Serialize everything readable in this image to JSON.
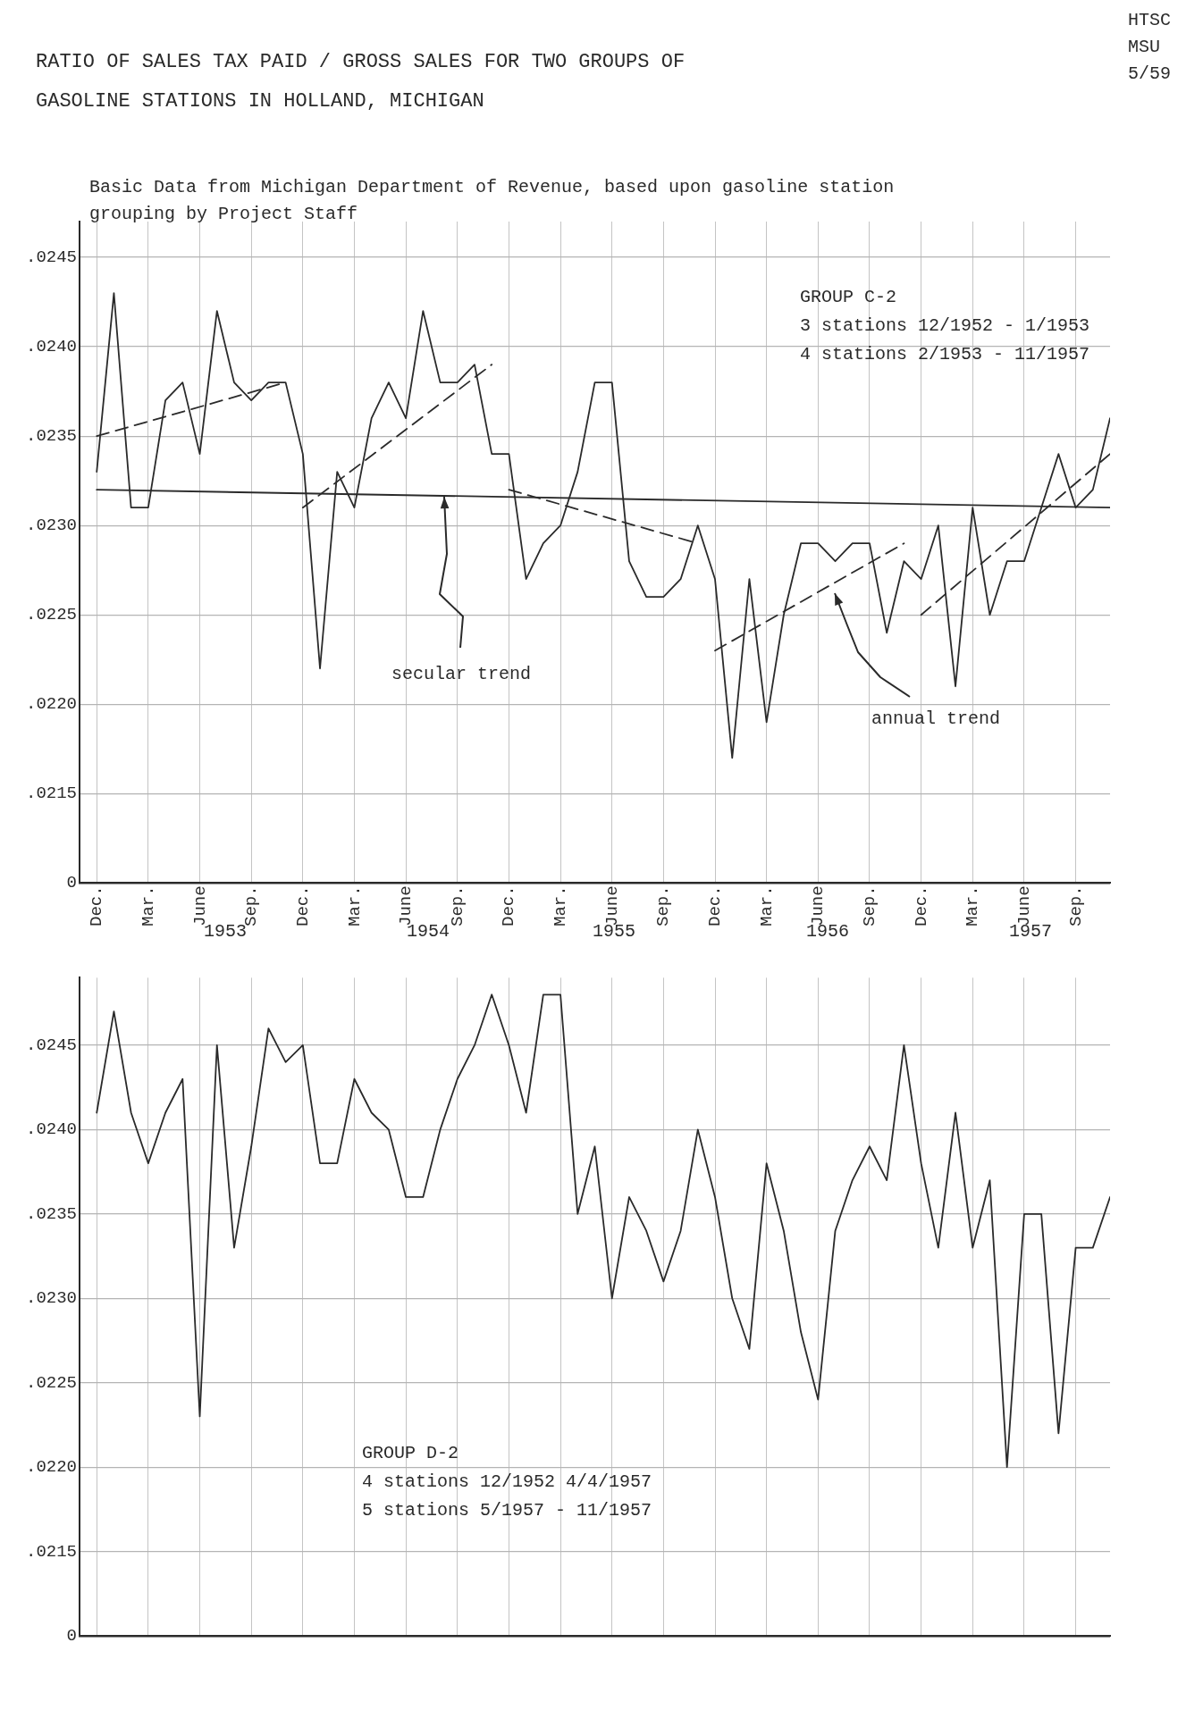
{
  "chart_data": [
    {
      "type": "line",
      "title": "RATIO OF SALES TAX PAID / GROSS SALES FOR TWO GROUPS OF GASOLINE STATIONS IN HOLLAND, MICHIGAN",
      "subtitle": "Basic Data from Michigan Department of Revenue, based upon gasoline station grouping by Project Staff",
      "annotations": [
        "HTSC MSU 5/59",
        "GROUP C-2",
        "3 stations 12/1952 - 1/1953",
        "4 stations 2/1953 - 11/1957",
        "1953",
        "1954",
        "1955",
        "1956",
        "1957"
      ],
      "x": [
        "1952-12",
        "1953-01",
        "1953-02",
        "1953-03",
        "1953-04",
        "1953-05",
        "1953-06",
        "1953-07",
        "1953-08",
        "1953-09",
        "1953-10",
        "1953-11",
        "1953-12",
        "1954-01",
        "1954-02",
        "1954-03",
        "1954-04",
        "1954-05",
        "1954-06",
        "1954-07",
        "1954-08",
        "1954-09",
        "1954-10",
        "1954-11",
        "1954-12",
        "1955-01",
        "1955-02",
        "1955-03",
        "1955-04",
        "1955-05",
        "1955-06",
        "1955-07",
        "1955-08",
        "1955-09",
        "1955-10",
        "1955-11",
        "1955-12",
        "1956-01",
        "1956-02",
        "1956-03",
        "1956-04",
        "1956-05",
        "1956-06",
        "1956-07",
        "1956-08",
        "1956-09",
        "1956-10",
        "1956-11",
        "1956-12",
        "1957-01",
        "1957-02",
        "1957-03",
        "1957-04",
        "1957-05",
        "1957-06",
        "1957-07",
        "1957-08",
        "1957-09",
        "1957-10",
        "1957-11"
      ],
      "xlim": [
        "1952-11",
        "1957-11"
      ],
      "xticks": [
        {
          "value": "1952-12",
          "label": "Dec."
        },
        {
          "value": "1953-03",
          "label": "Mar."
        },
        {
          "value": "1953-06",
          "label": "June"
        },
        {
          "value": "1953-09",
          "label": "Sep."
        },
        {
          "value": "1953-12",
          "label": "Dec."
        },
        {
          "value": "1954-03",
          "label": "Mar."
        },
        {
          "value": "1954-06",
          "label": "June"
        },
        {
          "value": "1954-09",
          "label": "Sep."
        },
        {
          "value": "1954-12",
          "label": "Dec."
        },
        {
          "value": "1955-03",
          "label": "Mar."
        },
        {
          "value": "1955-06",
          "label": "June"
        },
        {
          "value": "1955-09",
          "label": "Sep."
        },
        {
          "value": "1955-12",
          "label": "Dec."
        },
        {
          "value": "1956-03",
          "label": "Mar."
        },
        {
          "value": "1956-06",
          "label": "June"
        },
        {
          "value": "1956-09",
          "label": "Sep."
        },
        {
          "value": "1956-12",
          "label": "Dec."
        },
        {
          "value": "1957-03",
          "label": "Mar."
        },
        {
          "value": "1957-06",
          "label": "June"
        },
        {
          "value": "1957-09",
          "label": "Sep."
        }
      ],
      "ylim": [
        0.021,
        0.0247
      ],
      "yticks": [
        {
          "value": 0.021,
          "label": "0"
        },
        {
          "value": 0.0215,
          "label": ".0215"
        },
        {
          "value": 0.022,
          "label": ".0220"
        },
        {
          "value": 0.0225,
          "label": ".0225"
        },
        {
          "value": 0.023,
          "label": ".0230"
        },
        {
          "value": 0.0235,
          "label": ".0235"
        },
        {
          "value": 0.024,
          "label": ".0240"
        },
        {
          "value": 0.0245,
          "label": ".0245"
        }
      ],
      "grid": true,
      "marker": "none",
      "series": [
        {
          "color": "#2a2a2a",
          "line_style": "solid",
          "values": [
            0.0233,
            0.0243,
            0.0231,
            0.0231,
            0.0237,
            0.0238,
            0.0234,
            0.0242,
            0.0238,
            0.0237,
            0.0238,
            0.0238,
            0.0234,
            0.0222,
            0.0233,
            0.0231,
            0.0236,
            0.0238,
            0.0236,
            0.0242,
            0.0238,
            0.0238,
            0.0239,
            0.0234,
            0.0234,
            0.0227,
            0.0229,
            0.023,
            0.0233,
            0.0238,
            0.0238,
            0.0228,
            0.0226,
            0.0226,
            0.0227,
            0.023,
            0.0227,
            0.0217,
            0.0227,
            0.0219,
            0.0225,
            0.0229,
            0.0229,
            0.0228,
            0.0229,
            0.0229,
            0.0224,
            0.0228,
            0.0227,
            0.023,
            0.0221,
            0.0231,
            0.0225,
            0.0228,
            0.0228,
            0.0231,
            0.0234,
            0.0231,
            0.0232,
            0.0236
          ]
        },
        {
          "name": "secular trend",
          "type": "line",
          "color": "#2a2a2a",
          "line_style": "solid",
          "x": [
            "1952-12",
            "1957-11"
          ],
          "values": [
            0.0232,
            0.0231
          ]
        },
        {
          "name": "annual trend",
          "type": "line",
          "color": "#2a2a2a",
          "line_style": "dashed",
          "x": [
            "1952-12",
            "1953-11",
            null,
            "1953-12",
            "1954-11",
            null,
            "1954-12",
            "1955-11",
            null,
            "1955-12",
            "1956-11",
            null,
            "1956-12",
            "1957-11"
          ],
          "values": [
            0.0235,
            0.0238,
            null,
            0.0231,
            0.0239,
            null,
            0.0232,
            0.0229,
            null,
            0.0223,
            0.0229,
            null,
            0.0225,
            0.0234
          ]
        }
      ]
    },
    {
      "type": "line",
      "annotations": [
        "GROUP D-2",
        "4 stations 12/1952 4/4/1957",
        "5 stations 5/1957 - 11/1957"
      ],
      "x": [
        "1952-12",
        "1953-01",
        "1953-02",
        "1953-03",
        "1953-04",
        "1953-05",
        "1953-06",
        "1953-07",
        "1953-08",
        "1953-09",
        "1953-10",
        "1953-11",
        "1953-12",
        "1954-01",
        "1954-02",
        "1954-03",
        "1954-04",
        "1954-05",
        "1954-06",
        "1954-07",
        "1954-08",
        "1954-09",
        "1954-10",
        "1954-11",
        "1954-12",
        "1955-01",
        "1955-02",
        "1955-03",
        "1955-04",
        "1955-05",
        "1955-06",
        "1955-07",
        "1955-08",
        "1955-09",
        "1955-10",
        "1955-11",
        "1955-12",
        "1956-01",
        "1956-02",
        "1956-03",
        "1956-04",
        "1956-05",
        "1956-06",
        "1956-07",
        "1956-08",
        "1956-09",
        "1956-10",
        "1956-11",
        "1956-12",
        "1957-01",
        "1957-02",
        "1957-03",
        "1957-04",
        "1957-05",
        "1957-06",
        "1957-07",
        "1957-08",
        "1957-09",
        "1957-10",
        "1957-11"
      ],
      "xlim": [
        "1952-11",
        "1957-11"
      ],
      "xticks": [
        {
          "value": "1952-12",
          "label": null
        },
        {
          "value": "1953-03",
          "label": null
        },
        {
          "value": "1953-06",
          "label": null
        },
        {
          "value": "1953-09",
          "label": null
        },
        {
          "value": "1953-12",
          "label": null
        },
        {
          "value": "1954-03",
          "label": null
        },
        {
          "value": "1954-06",
          "label": null
        },
        {
          "value": "1954-09",
          "label": null
        },
        {
          "value": "1954-12",
          "label": null
        },
        {
          "value": "1955-03",
          "label": null
        },
        {
          "value": "1955-06",
          "label": null
        },
        {
          "value": "1955-09",
          "label": null
        },
        {
          "value": "1955-12",
          "label": null
        },
        {
          "value": "1956-03",
          "label": null
        },
        {
          "value": "1956-06",
          "label": null
        },
        {
          "value": "1956-09",
          "label": null
        },
        {
          "value": "1956-12",
          "label": null
        },
        {
          "value": "1957-03",
          "label": null
        },
        {
          "value": "1957-06",
          "label": null
        },
        {
          "value": "1957-09",
          "label": null
        }
      ],
      "ylim": [
        0.021,
        0.0249
      ],
      "yticks": [
        {
          "value": 0.021,
          "label": "0"
        },
        {
          "value": 0.0215,
          "label": ".0215"
        },
        {
          "value": 0.022,
          "label": ".0220"
        },
        {
          "value": 0.0225,
          "label": ".0225"
        },
        {
          "value": 0.023,
          "label": ".0230"
        },
        {
          "value": 0.0235,
          "label": ".0235"
        },
        {
          "value": 0.024,
          "label": ".0240"
        },
        {
          "value": 0.0245,
          "label": ".0245"
        }
      ],
      "tick_labels": "y",
      "grid": true,
      "marker": "none",
      "series": [
        {
          "color": "#2a2a2a",
          "line_style": "solid",
          "values": [
            0.0241,
            0.0247,
            0.0241,
            0.0238,
            0.0241,
            0.0243,
            0.0223,
            0.0245,
            0.0233,
            0.0239,
            0.0246,
            0.0244,
            0.0245,
            0.0238,
            0.0238,
            0.0243,
            0.0241,
            0.024,
            0.0236,
            0.0236,
            0.024,
            0.0243,
            0.0245,
            0.0248,
            0.0245,
            0.0241,
            0.0248,
            0.0248,
            0.0235,
            0.0239,
            0.023,
            0.0236,
            0.0234,
            0.0231,
            0.0234,
            0.024,
            0.0236,
            0.023,
            0.0227,
            0.0238,
            0.0234,
            0.0228,
            0.0224,
            0.0234,
            0.0237,
            0.0239,
            0.0237,
            0.0245,
            0.0238,
            0.0233,
            0.0241,
            0.0233,
            0.0237,
            0.022,
            0.0235,
            0.0235,
            0.0222,
            0.0233,
            0.0233,
            0.0236
          ]
        }
      ]
    }
  ]
}
